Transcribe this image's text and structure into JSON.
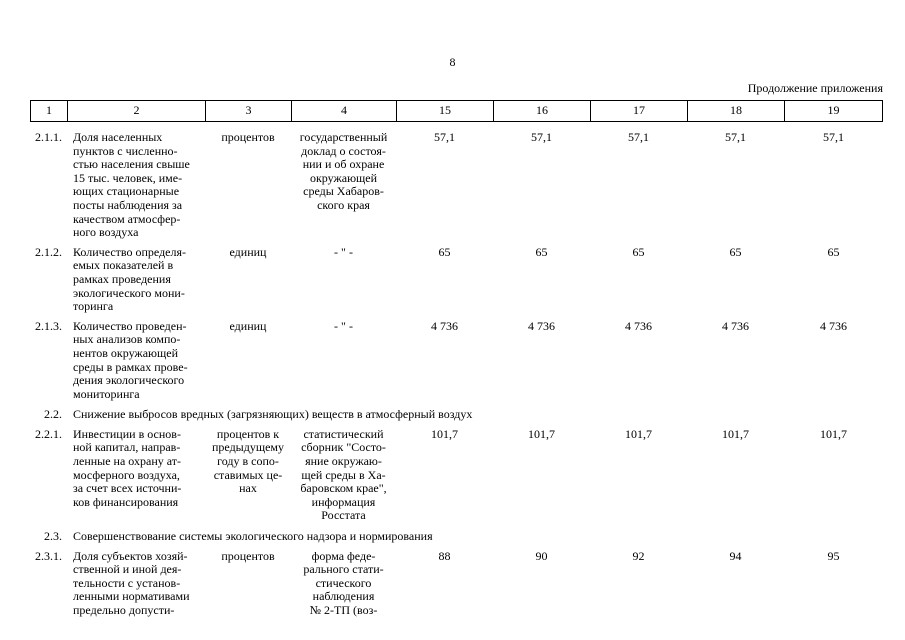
{
  "page": {
    "number": "8",
    "continuation": "Продолжение приложения"
  },
  "table": {
    "header": [
      "1",
      "2",
      "3",
      "4",
      "15",
      "16",
      "17",
      "18",
      "19"
    ],
    "rows": [
      {
        "type": "item",
        "num": "2.1.1.",
        "name": "Доля населенных\nпунктов с численно-\nстью населения свыше\n15 тыс. человек, име-\nющих стационарные\nпосты наблюдения за\nкачеством атмосфер-\nного воздуха",
        "unit": "процентов",
        "source": "государственный\nдоклад о состоя-\nнии и об охране\nокружающей\nсреды Хабаров-\nского края",
        "values": [
          "57,1",
          "57,1",
          "57,1",
          "57,1",
          "57,1"
        ]
      },
      {
        "type": "item",
        "num": "2.1.2.",
        "name": "Количество определя-\nемых показателей в\nрамках проведения\nэкологического мони-\nторинга",
        "unit": "единиц",
        "source": "- \" -",
        "values": [
          "65",
          "65",
          "65",
          "65",
          "65"
        ]
      },
      {
        "type": "item",
        "num": "2.1.3.",
        "name": "Количество проведен-\nных анализов компо-\nнентов окружающей\nсреды в рамках прове-\nдения экологического\nмониторинга",
        "unit": "единиц",
        "source": "- \" -",
        "values": [
          "4 736",
          "4 736",
          "4 736",
          "4 736",
          "4 736"
        ]
      },
      {
        "type": "section",
        "num": "2.2.",
        "title": "Снижение выбросов вредных (загрязняющих) веществ в атмосферный воздух"
      },
      {
        "type": "item",
        "num": "2.2.1.",
        "name": "Инвестиции в основ-\nной капитал, направ-\nленные на охрану ат-\nмосферного воздуха,\nза счет всех источни-\nков финансирования",
        "unit": "процентов к\nпредыдущему\nгоду в сопо-\nставимых це-\nнах",
        "source": "статистический\nсборник \"Состо-\nяние окружаю-\nщей среды в Ха-\nбаровском крае\",\nинформация\nРосстата",
        "values": [
          "101,7",
          "101,7",
          "101,7",
          "101,7",
          "101,7"
        ]
      },
      {
        "type": "section",
        "num": "2.3.",
        "title": "Совершенствование системы экологического надзора и нормирования"
      },
      {
        "type": "item",
        "num": "2.3.1.",
        "name": "Доля субъектов хозяй-\nственной и иной дея-\nтельности с установ-\nленными нормативами\nпредельно допусти-",
        "unit": "процентов",
        "source": "форма феде-\nрального стати-\nстического\nнаблюдения\n№ 2-ТП (воз-",
        "values": [
          "88",
          "90",
          "92",
          "94",
          "95"
        ]
      }
    ]
  }
}
